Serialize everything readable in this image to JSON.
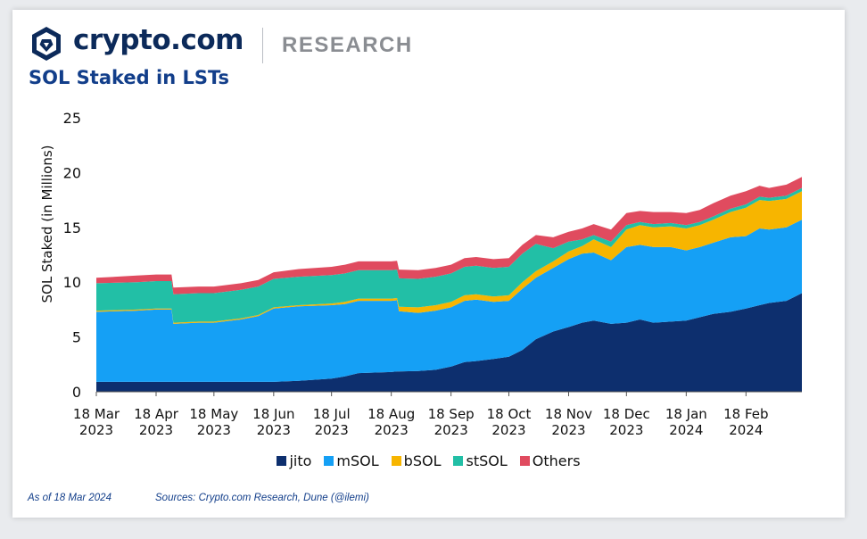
{
  "header": {
    "brand_name": "crypto.com",
    "section_label": "RESEARCH",
    "logo_icon": "crypto-com-lion-shield-icon"
  },
  "footer": {
    "as_of": "As of 18 Mar 2024",
    "sources": "Sources: Crypto.com Research, Dune (@ilemi)"
  },
  "colors": {
    "jito": "#0d2f6e",
    "mSOL": "#15a0f5",
    "bSOL": "#f7b500",
    "stSOL": "#22bfa6",
    "Others": "#e04b5f",
    "title": "#123e8a",
    "brand": "#0c2a5a"
  },
  "chart_data": {
    "type": "area",
    "stacked": true,
    "title": "SOL Staked in LSTs",
    "ylabel": "SOL Staked (in Millions)",
    "xlabel": "",
    "ylim": [
      0,
      25
    ],
    "yticks": [
      0,
      5,
      10,
      15,
      20,
      25
    ],
    "xticks": [
      "18 Mar 2023",
      "18 Apr 2023",
      "18 May 2023",
      "18 Jun 2023",
      "18 Jul 2023",
      "18 Aug 2023",
      "18 Sep 2023",
      "18 Oct 2023",
      "18 Nov 2023",
      "18 Dec 2023",
      "18 Jan 2024",
      "18 Feb 2024"
    ],
    "grid": false,
    "legend": "bottom",
    "x": [
      "2023-03-18",
      "2023-04-08",
      "2023-04-18",
      "2023-04-26",
      "2023-04-27",
      "2023-05-10",
      "2023-05-18",
      "2023-06-01",
      "2023-06-10",
      "2023-06-18",
      "2023-07-01",
      "2023-07-18",
      "2023-07-25",
      "2023-08-01",
      "2023-08-18",
      "2023-08-21",
      "2023-08-22",
      "2023-09-01",
      "2023-09-10",
      "2023-09-18",
      "2023-09-25",
      "2023-10-01",
      "2023-10-10",
      "2023-10-18",
      "2023-10-25",
      "2023-11-01",
      "2023-11-10",
      "2023-11-18",
      "2023-11-25",
      "2023-12-01",
      "2023-12-10",
      "2023-12-18",
      "2023-12-25",
      "2024-01-01",
      "2024-01-10",
      "2024-01-18",
      "2024-01-25",
      "2024-02-01",
      "2024-02-10",
      "2024-02-18",
      "2024-02-25",
      "2024-03-01",
      "2024-03-10",
      "2024-03-18"
    ],
    "series": [
      {
        "name": "jito",
        "values": [
          0.9,
          0.9,
          0.9,
          0.9,
          0.9,
          0.9,
          0.9,
          0.9,
          0.9,
          0.9,
          1.0,
          1.2,
          1.4,
          1.7,
          1.8,
          1.85,
          1.85,
          1.9,
          2.0,
          2.3,
          2.7,
          2.8,
          3.0,
          3.2,
          3.8,
          4.8,
          5.5,
          5.9,
          6.3,
          6.5,
          6.2,
          6.3,
          6.6,
          6.3,
          6.4,
          6.5,
          6.8,
          7.1,
          7.3,
          7.6,
          7.9,
          8.1,
          8.3,
          9.0
        ]
      },
      {
        "name": "mSOL",
        "values": [
          6.4,
          6.5,
          6.6,
          6.6,
          5.3,
          5.4,
          5.4,
          5.7,
          6.0,
          6.7,
          6.8,
          6.7,
          6.6,
          6.6,
          6.5,
          6.5,
          5.5,
          5.3,
          5.4,
          5.4,
          5.6,
          5.6,
          5.2,
          5.1,
          5.6,
          5.6,
          5.8,
          6.2,
          6.3,
          6.2,
          5.8,
          6.9,
          6.8,
          6.9,
          6.8,
          6.4,
          6.4,
          6.5,
          6.8,
          6.6,
          7.0,
          6.7,
          6.7,
          6.7
        ]
      },
      {
        "name": "bSOL",
        "values": [
          0.1,
          0.1,
          0.1,
          0.1,
          0.1,
          0.1,
          0.1,
          0.1,
          0.1,
          0.1,
          0.1,
          0.15,
          0.2,
          0.2,
          0.2,
          0.2,
          0.4,
          0.5,
          0.5,
          0.5,
          0.5,
          0.5,
          0.5,
          0.5,
          0.6,
          0.6,
          0.6,
          0.7,
          0.7,
          1.2,
          1.2,
          1.6,
          1.8,
          1.8,
          1.9,
          2.0,
          2.0,
          2.1,
          2.3,
          2.6,
          2.6,
          2.6,
          2.6,
          2.6
        ]
      },
      {
        "name": "stSOL",
        "values": [
          2.5,
          2.5,
          2.5,
          2.5,
          2.6,
          2.6,
          2.6,
          2.6,
          2.6,
          2.6,
          2.6,
          2.6,
          2.6,
          2.6,
          2.6,
          2.6,
          2.6,
          2.6,
          2.6,
          2.6,
          2.6,
          2.6,
          2.6,
          2.6,
          2.6,
          2.5,
          1.2,
          0.9,
          0.6,
          0.4,
          0.5,
          0.4,
          0.3,
          0.3,
          0.3,
          0.3,
          0.3,
          0.3,
          0.3,
          0.3,
          0.3,
          0.3,
          0.3,
          0.3
        ]
      },
      {
        "name": "Others",
        "values": [
          0.5,
          0.6,
          0.6,
          0.6,
          0.6,
          0.6,
          0.6,
          0.6,
          0.6,
          0.6,
          0.7,
          0.75,
          0.8,
          0.8,
          0.8,
          0.8,
          0.8,
          0.8,
          0.8,
          0.8,
          0.8,
          0.8,
          0.8,
          0.8,
          0.8,
          0.8,
          1.0,
          0.9,
          1.0,
          1.0,
          1.1,
          1.1,
          1.0,
          1.1,
          1.0,
          1.1,
          1.1,
          1.2,
          1.2,
          1.2,
          1.0,
          0.9,
          1.0,
          1.0
        ]
      }
    ]
  }
}
